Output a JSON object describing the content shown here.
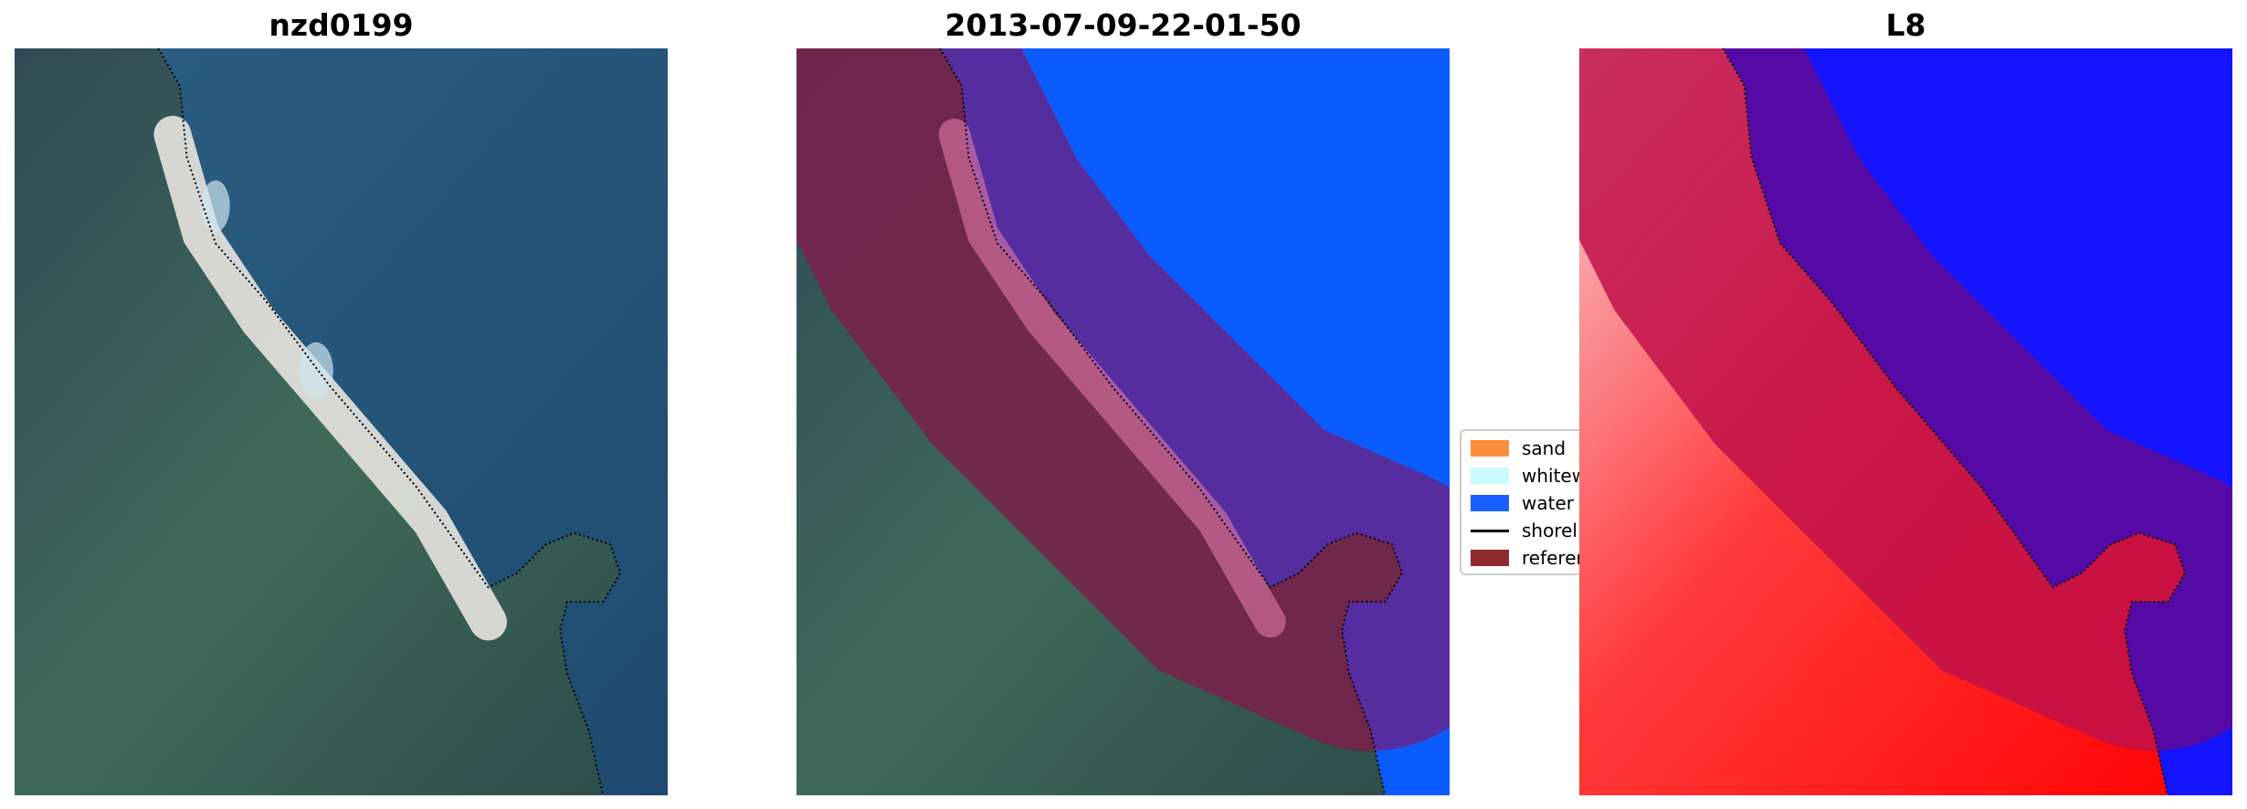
{
  "panels": [
    {
      "title": "nzd0199"
    },
    {
      "title": "2013-07-09-22-01-50"
    },
    {
      "title": "L8"
    }
  ],
  "legend": {
    "entries": [
      {
        "label": "sand",
        "color": "#ff8c3a",
        "symbol": "patch"
      },
      {
        "label": "whitew",
        "color": "#c9fbff",
        "symbol": "patch"
      },
      {
        "label": "water",
        "color": "#1660ff",
        "symbol": "patch"
      },
      {
        "label": "shorel",
        "color": "#000000",
        "symbol": "line"
      },
      {
        "label": "referen",
        "color": "#8c2a2e",
        "symbol": "patch"
      }
    ]
  }
}
